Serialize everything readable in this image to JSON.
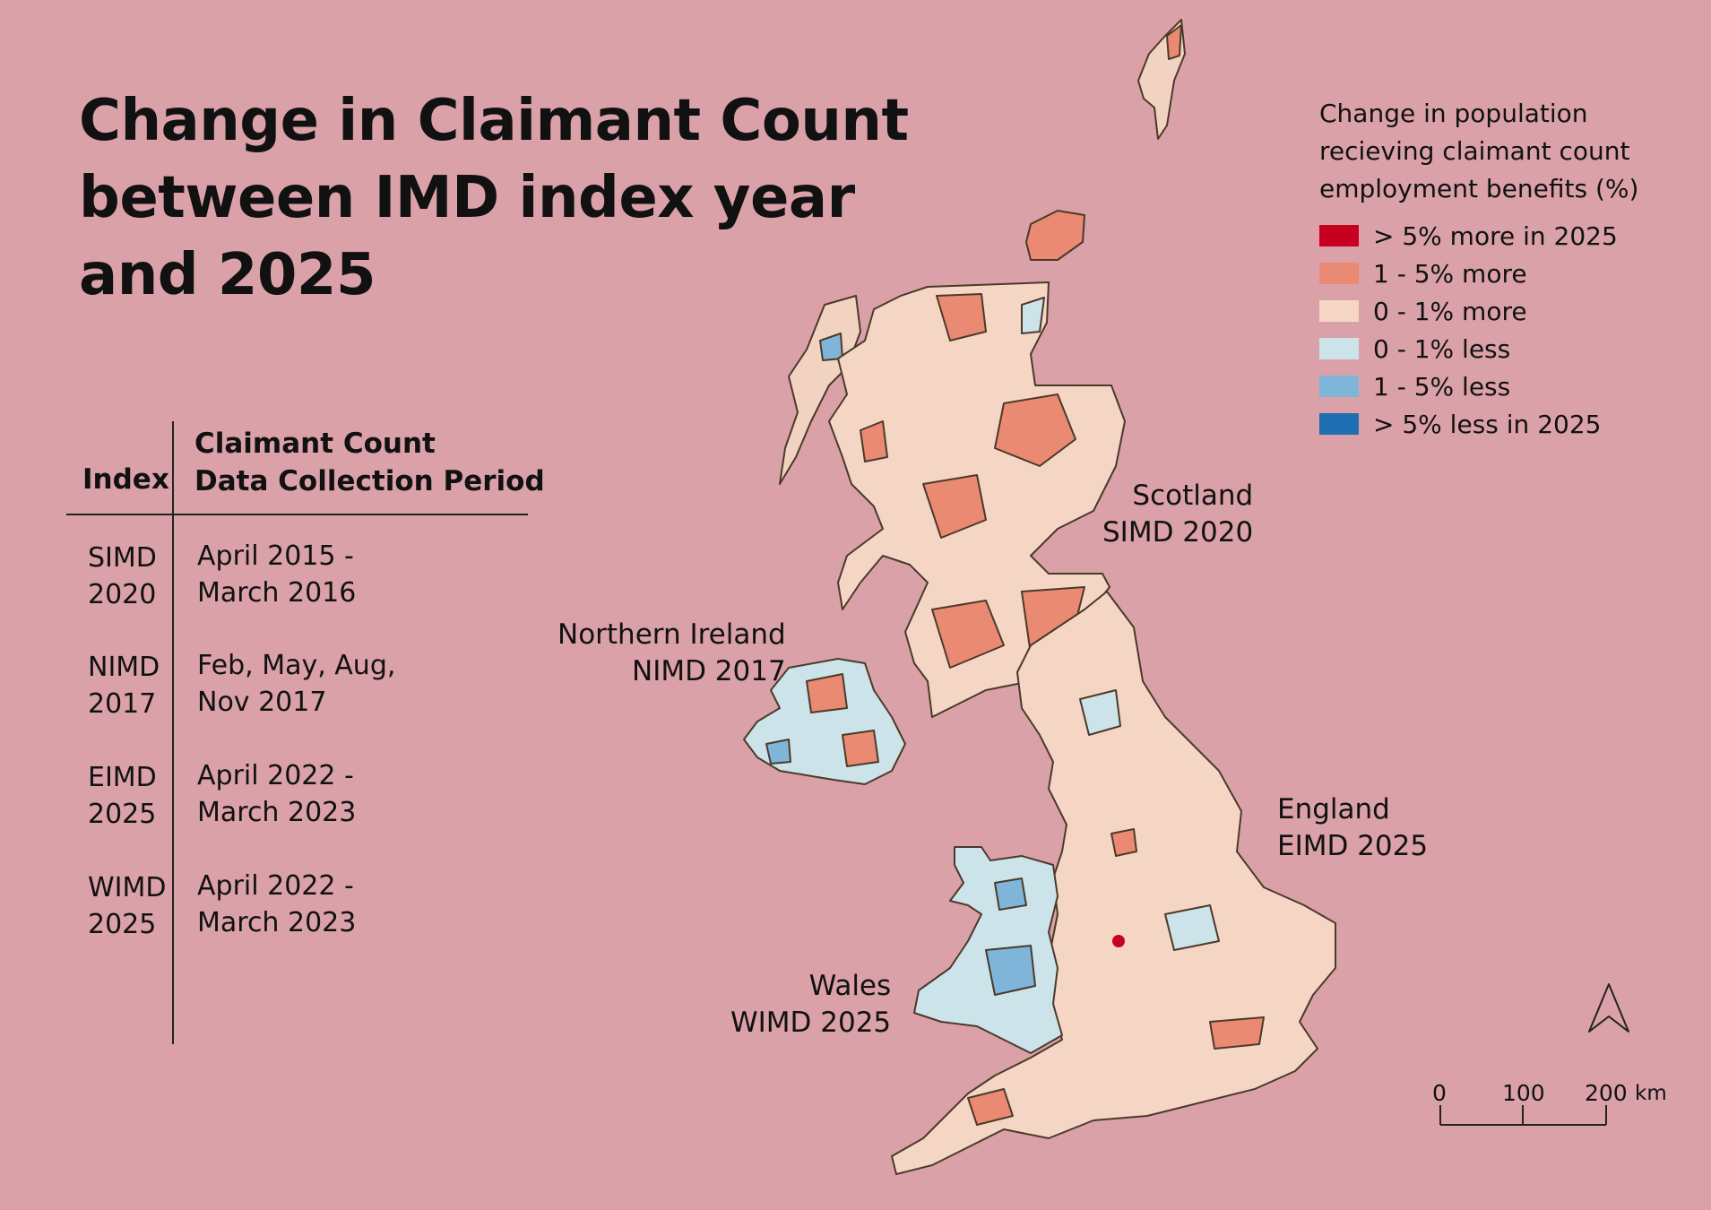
{
  "title": [
    "Change in Claimant Count",
    "between IMD index year",
    "and 2025"
  ],
  "index_table": {
    "header_index": "Index",
    "header_period": [
      "Claimant Count",
      "Data Collection Period"
    ],
    "rows": [
      {
        "index": [
          "SIMD",
          "2020"
        ],
        "period": [
          "April 2015 -",
          "March 2016"
        ]
      },
      {
        "index": [
          "NIMD",
          "2017"
        ],
        "period": [
          "Feb, May, Aug,",
          "Nov 2017"
        ]
      },
      {
        "index": [
          "EIMD",
          "2025"
        ],
        "period": [
          "April 2022 -",
          "March 2023"
        ]
      },
      {
        "index": [
          "WIMD",
          "2025"
        ],
        "period": [
          "April 2022 -",
          "March 2023"
        ]
      }
    ]
  },
  "legend": {
    "title": [
      "Change in population",
      "recieving claimant count",
      "employment benefits (%)"
    ],
    "items": [
      {
        "label": "> 5% more in 2025",
        "color": "#c8001f"
      },
      {
        "label": "1 - 5% more",
        "color": "#ea8a72"
      },
      {
        "label": "0 - 1% more",
        "color": "#f5d6c4"
      },
      {
        "label": "0 - 1% less",
        "color": "#cde3ea"
      },
      {
        "label": "1 - 5% less",
        "color": "#7fb5d9"
      },
      {
        "label": "> 5% less in 2025",
        "color": "#1f6fb2"
      }
    ]
  },
  "regions": {
    "scotland": [
      "Scotland",
      "SIMD 2020"
    ],
    "northern_ireland": [
      "Northern Ireland",
      "NIMD 2017"
    ],
    "england": [
      "England",
      "EIMD 2025"
    ],
    "wales": [
      "Wales",
      "WIMD 2025"
    ]
  },
  "scale": {
    "ticks": [
      "0",
      "100",
      "200"
    ],
    "unit": "km"
  },
  "colors": {
    "background": "#dba1a9",
    "outline": "#4a3a2a"
  }
}
